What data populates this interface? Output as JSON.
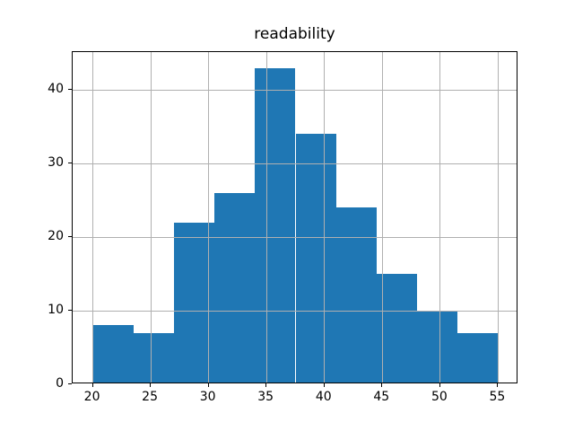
{
  "chart_data": {
    "type": "bar",
    "subtype": "histogram",
    "title": "readability",
    "xlabel": "",
    "ylabel": "",
    "bin_edges": [
      20,
      23.5,
      27,
      30.5,
      34,
      37.5,
      41,
      44.5,
      48,
      51.5,
      55
    ],
    "counts": [
      8,
      7,
      22,
      26,
      43,
      34,
      24,
      15,
      10,
      7
    ],
    "xticks": [
      20,
      25,
      30,
      35,
      40,
      45,
      50,
      55
    ],
    "yticks": [
      0,
      10,
      20,
      30,
      40
    ],
    "xlim": [
      18.25,
      56.75
    ],
    "ylim": [
      0,
      45.15
    ],
    "grid": true,
    "legend": null,
    "bar_color": "#1f77b4",
    "grid_color": "#b0b0b0",
    "spine_color": "#000000",
    "text_color": "#000000",
    "background_color": "#ffffff"
  }
}
